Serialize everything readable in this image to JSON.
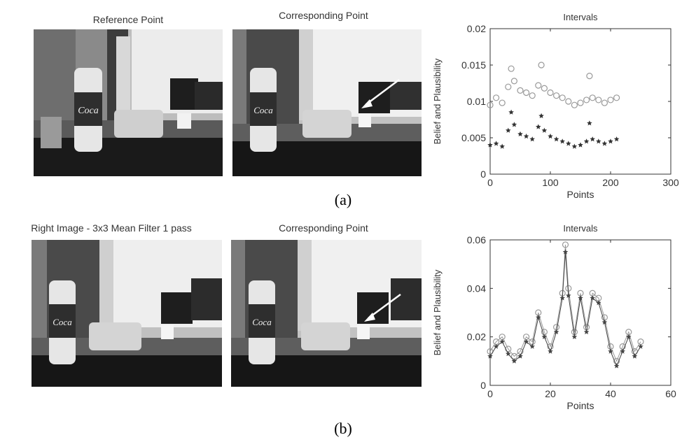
{
  "row_a": {
    "left_title": "Reference Point",
    "mid_title": "Corresponding Point",
    "caption": "(a)",
    "photo_brand_text": "Coca"
  },
  "row_b": {
    "left_title": "Right Image - 3x3 Mean Filter 1 pass",
    "mid_title": "Corresponding Point",
    "caption": "(b)",
    "photo_brand_text": "Coca"
  },
  "chart_data": [
    {
      "type": "scatter",
      "title": "Intervals",
      "xlabel": "Points",
      "ylabel": "Belief and Plausibility",
      "xlim": [
        0,
        300
      ],
      "ylim": [
        0,
        0.02
      ],
      "xticks": [
        "0",
        "100",
        "200",
        "300"
      ],
      "yticks": [
        "0",
        "0.005",
        "0.01",
        "0.015",
        "0.02"
      ],
      "series": [
        {
          "marker": "circle",
          "color": "#999999",
          "x": [
            0,
            10,
            20,
            30,
            35,
            40,
            50,
            60,
            70,
            80,
            85,
            90,
            100,
            110,
            120,
            130,
            140,
            150,
            160,
            165,
            170,
            180,
            190,
            200,
            210
          ],
          "values": [
            0.0095,
            0.0105,
            0.0098,
            0.012,
            0.0145,
            0.0128,
            0.0115,
            0.0112,
            0.0108,
            0.0122,
            0.015,
            0.0118,
            0.0112,
            0.0108,
            0.0105,
            0.01,
            0.0095,
            0.0098,
            0.0102,
            0.0135,
            0.0105,
            0.0102,
            0.0098,
            0.0102,
            0.0105
          ]
        },
        {
          "marker": "star",
          "color": "#333333",
          "x": [
            0,
            10,
            20,
            30,
            35,
            40,
            50,
            60,
            70,
            80,
            85,
            90,
            100,
            110,
            120,
            130,
            140,
            150,
            160,
            165,
            170,
            180,
            190,
            200,
            210
          ],
          "values": [
            0.004,
            0.0042,
            0.0038,
            0.006,
            0.0085,
            0.0068,
            0.0055,
            0.0052,
            0.0048,
            0.0065,
            0.008,
            0.006,
            0.0052,
            0.0048,
            0.0045,
            0.0042,
            0.0038,
            0.004,
            0.0045,
            0.007,
            0.0048,
            0.0045,
            0.0042,
            0.0045,
            0.0048
          ]
        }
      ]
    },
    {
      "type": "line",
      "title": "Intervals",
      "xlabel": "Points",
      "ylabel": "Belief and Plausibility",
      "xlim": [
        0,
        60
      ],
      "ylim": [
        0,
        0.06
      ],
      "xticks": [
        "0",
        "20",
        "40",
        "60"
      ],
      "yticks": [
        "0",
        "0.02",
        "0.04",
        "0.06"
      ],
      "series": [
        {
          "marker": "circle",
          "color": "#999999",
          "x": [
            0,
            2,
            4,
            6,
            8,
            10,
            12,
            14,
            16,
            18,
            20,
            22,
            24,
            25,
            26,
            28,
            30,
            32,
            34,
            36,
            38,
            40,
            42,
            44,
            46,
            48,
            50
          ],
          "values": [
            0.014,
            0.018,
            0.02,
            0.015,
            0.012,
            0.014,
            0.02,
            0.018,
            0.03,
            0.022,
            0.016,
            0.024,
            0.038,
            0.058,
            0.04,
            0.022,
            0.038,
            0.024,
            0.038,
            0.036,
            0.028,
            0.016,
            0.01,
            0.016,
            0.022,
            0.014,
            0.018
          ]
        },
        {
          "marker": "star",
          "color": "#444444",
          "x": [
            0,
            2,
            4,
            6,
            8,
            10,
            12,
            14,
            16,
            18,
            20,
            22,
            24,
            25,
            26,
            28,
            30,
            32,
            34,
            36,
            38,
            40,
            42,
            44,
            46,
            48,
            50
          ],
          "values": [
            0.012,
            0.016,
            0.018,
            0.013,
            0.01,
            0.012,
            0.018,
            0.016,
            0.028,
            0.02,
            0.014,
            0.022,
            0.036,
            0.055,
            0.037,
            0.02,
            0.036,
            0.022,
            0.036,
            0.034,
            0.026,
            0.014,
            0.008,
            0.014,
            0.02,
            0.012,
            0.016
          ]
        }
      ]
    }
  ]
}
